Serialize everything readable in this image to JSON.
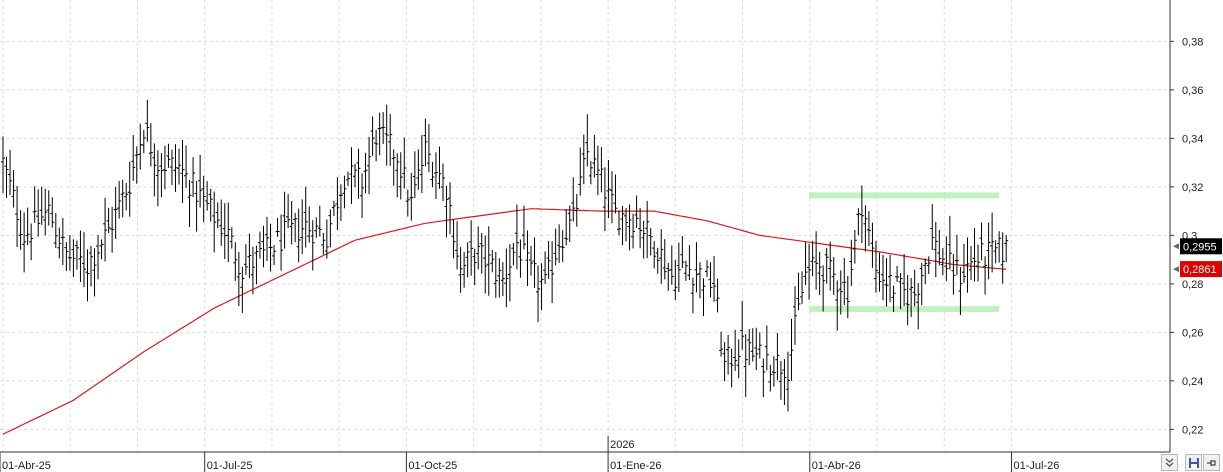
{
  "chart_data": {
    "type": "ohlc",
    "title": "",
    "xlabel": "",
    "ylabel": "",
    "ylim": [
      0.215,
      0.392
    ],
    "y_ticks": [
      "0,22",
      "0,24",
      "0,26",
      "0,28",
      "0,3",
      "0,32",
      "0,34",
      "0,36",
      "0,38"
    ],
    "y_tick_values": [
      0.22,
      0.24,
      0.26,
      0.28,
      0.3,
      0.32,
      0.34,
      0.36,
      0.38
    ],
    "x_tick_labels": [
      "01-Abr-25",
      "01-Jul-25",
      "01-Oct-25",
      "01-Ene-26",
      "01-Abr-26",
      "01-Jul-26"
    ],
    "year_marker": "2026",
    "grid": true,
    "price_series": {
      "name": "",
      "color": "#000000",
      "control_points": [
        [
          0,
          0.33
        ],
        [
          6,
          0.3
        ],
        [
          13,
          0.31
        ],
        [
          18,
          0.292
        ],
        [
          24,
          0.288
        ],
        [
          30,
          0.302
        ],
        [
          36,
          0.322
        ],
        [
          40,
          0.345
        ],
        [
          44,
          0.33
        ],
        [
          50,
          0.328
        ],
        [
          58,
          0.312
        ],
        [
          64,
          0.3
        ],
        [
          68,
          0.286
        ],
        [
          74,
          0.292
        ],
        [
          80,
          0.3
        ],
        [
          86,
          0.304
        ],
        [
          92,
          0.3
        ],
        [
          97,
          0.325
        ],
        [
          102,
          0.322
        ],
        [
          106,
          0.342
        ],
        [
          112,
          0.333
        ],
        [
          116,
          0.313
        ],
        [
          120,
          0.335
        ],
        [
          126,
          0.32
        ],
        [
          130,
          0.285
        ],
        [
          134,
          0.293
        ],
        [
          138,
          0.289
        ],
        [
          142,
          0.281
        ],
        [
          146,
          0.297
        ],
        [
          150,
          0.284
        ],
        [
          154,
          0.279
        ],
        [
          158,
          0.298
        ],
        [
          162,
          0.306
        ],
        [
          166,
          0.334
        ],
        [
          170,
          0.322
        ],
        [
          174,
          0.309
        ],
        [
          180,
          0.307
        ],
        [
          186,
          0.295
        ],
        [
          190,
          0.283
        ],
        [
          194,
          0.287
        ],
        [
          198,
          0.284
        ],
        [
          202,
          0.28
        ],
        [
          205,
          0.246
        ],
        [
          209,
          0.254
        ],
        [
          214,
          0.25
        ],
        [
          219,
          0.248
        ],
        [
          223,
          0.246
        ],
        [
          228,
          0.284
        ],
        [
          232,
          0.288
        ],
        [
          236,
          0.283
        ],
        [
          240,
          0.278
        ],
        [
          244,
          0.314
        ],
        [
          248,
          0.286
        ],
        [
          252,
          0.28
        ],
        [
          256,
          0.276
        ],
        [
          259,
          0.276
        ],
        [
          264,
          0.298
        ],
        [
          268,
          0.288
        ],
        [
          272,
          0.284
        ],
        [
          276,
          0.29
        ],
        [
          280,
          0.292
        ],
        [
          285,
          0.294
        ]
      ],
      "last_value": 0.2955,
      "last_label": "0,2955"
    },
    "moving_average": {
      "name": "",
      "color": "#d41e1e",
      "control_points": [
        [
          0,
          0.218
        ],
        [
          20,
          0.232
        ],
        [
          40,
          0.252
        ],
        [
          60,
          0.27
        ],
        [
          80,
          0.284
        ],
        [
          100,
          0.298
        ],
        [
          120,
          0.305
        ],
        [
          150,
          0.311
        ],
        [
          170,
          0.31
        ],
        [
          185,
          0.31
        ],
        [
          200,
          0.306
        ],
        [
          215,
          0.3
        ],
        [
          230,
          0.297
        ],
        [
          250,
          0.293
        ],
        [
          270,
          0.288
        ],
        [
          285,
          0.286
        ]
      ],
      "last_value": 0.2861,
      "last_label": "0,2861"
    },
    "support_resistance": [
      {
        "color": "#c2f0bf",
        "value": 0.3165,
        "from_index": 229,
        "to_index": 283
      },
      {
        "color": "#c2f0bf",
        "value": 0.2696,
        "from_index": 229,
        "to_index": 283
      }
    ]
  },
  "controls": {
    "zoom_icon": "double-chevron-down-icon",
    "save_icon": "floppy-disk-icon",
    "pin_icon": "pin-icon"
  }
}
